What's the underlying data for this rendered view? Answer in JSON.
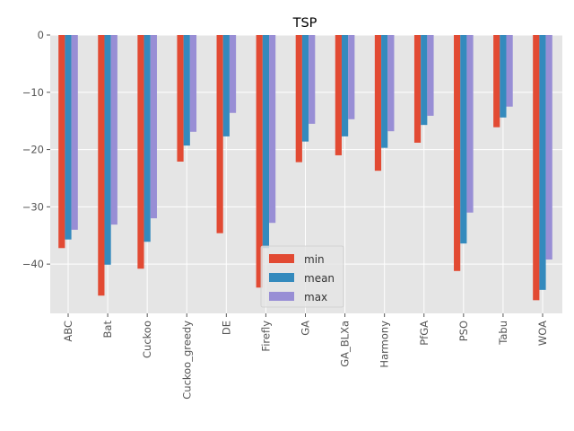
{
  "chart_data": {
    "type": "bar",
    "title": "TSP",
    "xlabel": "",
    "ylabel": "",
    "ylim": [
      -48.6,
      0
    ],
    "yticks": [
      0,
      -10,
      -20,
      -30,
      -40
    ],
    "ytick_labels": [
      "0",
      "−10",
      "−20",
      "−30",
      "−40"
    ],
    "grid": true,
    "legend_position": "bottom-center",
    "categories": [
      "ABC",
      "Bat",
      "Cuckoo",
      "Cuckoo_greedy",
      "DE",
      "Firefly",
      "GA",
      "GA_BLXa",
      "Harmony",
      "PfGA",
      "PSO",
      "Tabu",
      "WOA"
    ],
    "series": [
      {
        "name": "min",
        "color": "#E24A33",
        "values": [
          -37.2,
          -45.5,
          -40.8,
          -22.1,
          -34.6,
          -44.1,
          -22.2,
          -21.0,
          -23.7,
          -18.8,
          -41.2,
          -16.1,
          -46.3
        ]
      },
      {
        "name": "mean",
        "color": "#348ABD",
        "values": [
          -35.7,
          -40.1,
          -36.1,
          -19.3,
          -17.7,
          -37.2,
          -18.6,
          -17.7,
          -19.7,
          -15.7,
          -36.4,
          -14.4,
          -44.5
        ]
      },
      {
        "name": "max",
        "color": "#988ED5",
        "values": [
          -34.0,
          -33.1,
          -32.0,
          -16.9,
          -13.6,
          -32.8,
          -15.5,
          -14.7,
          -16.8,
          -14.1,
          -31.0,
          -12.5,
          -39.2
        ]
      }
    ]
  }
}
